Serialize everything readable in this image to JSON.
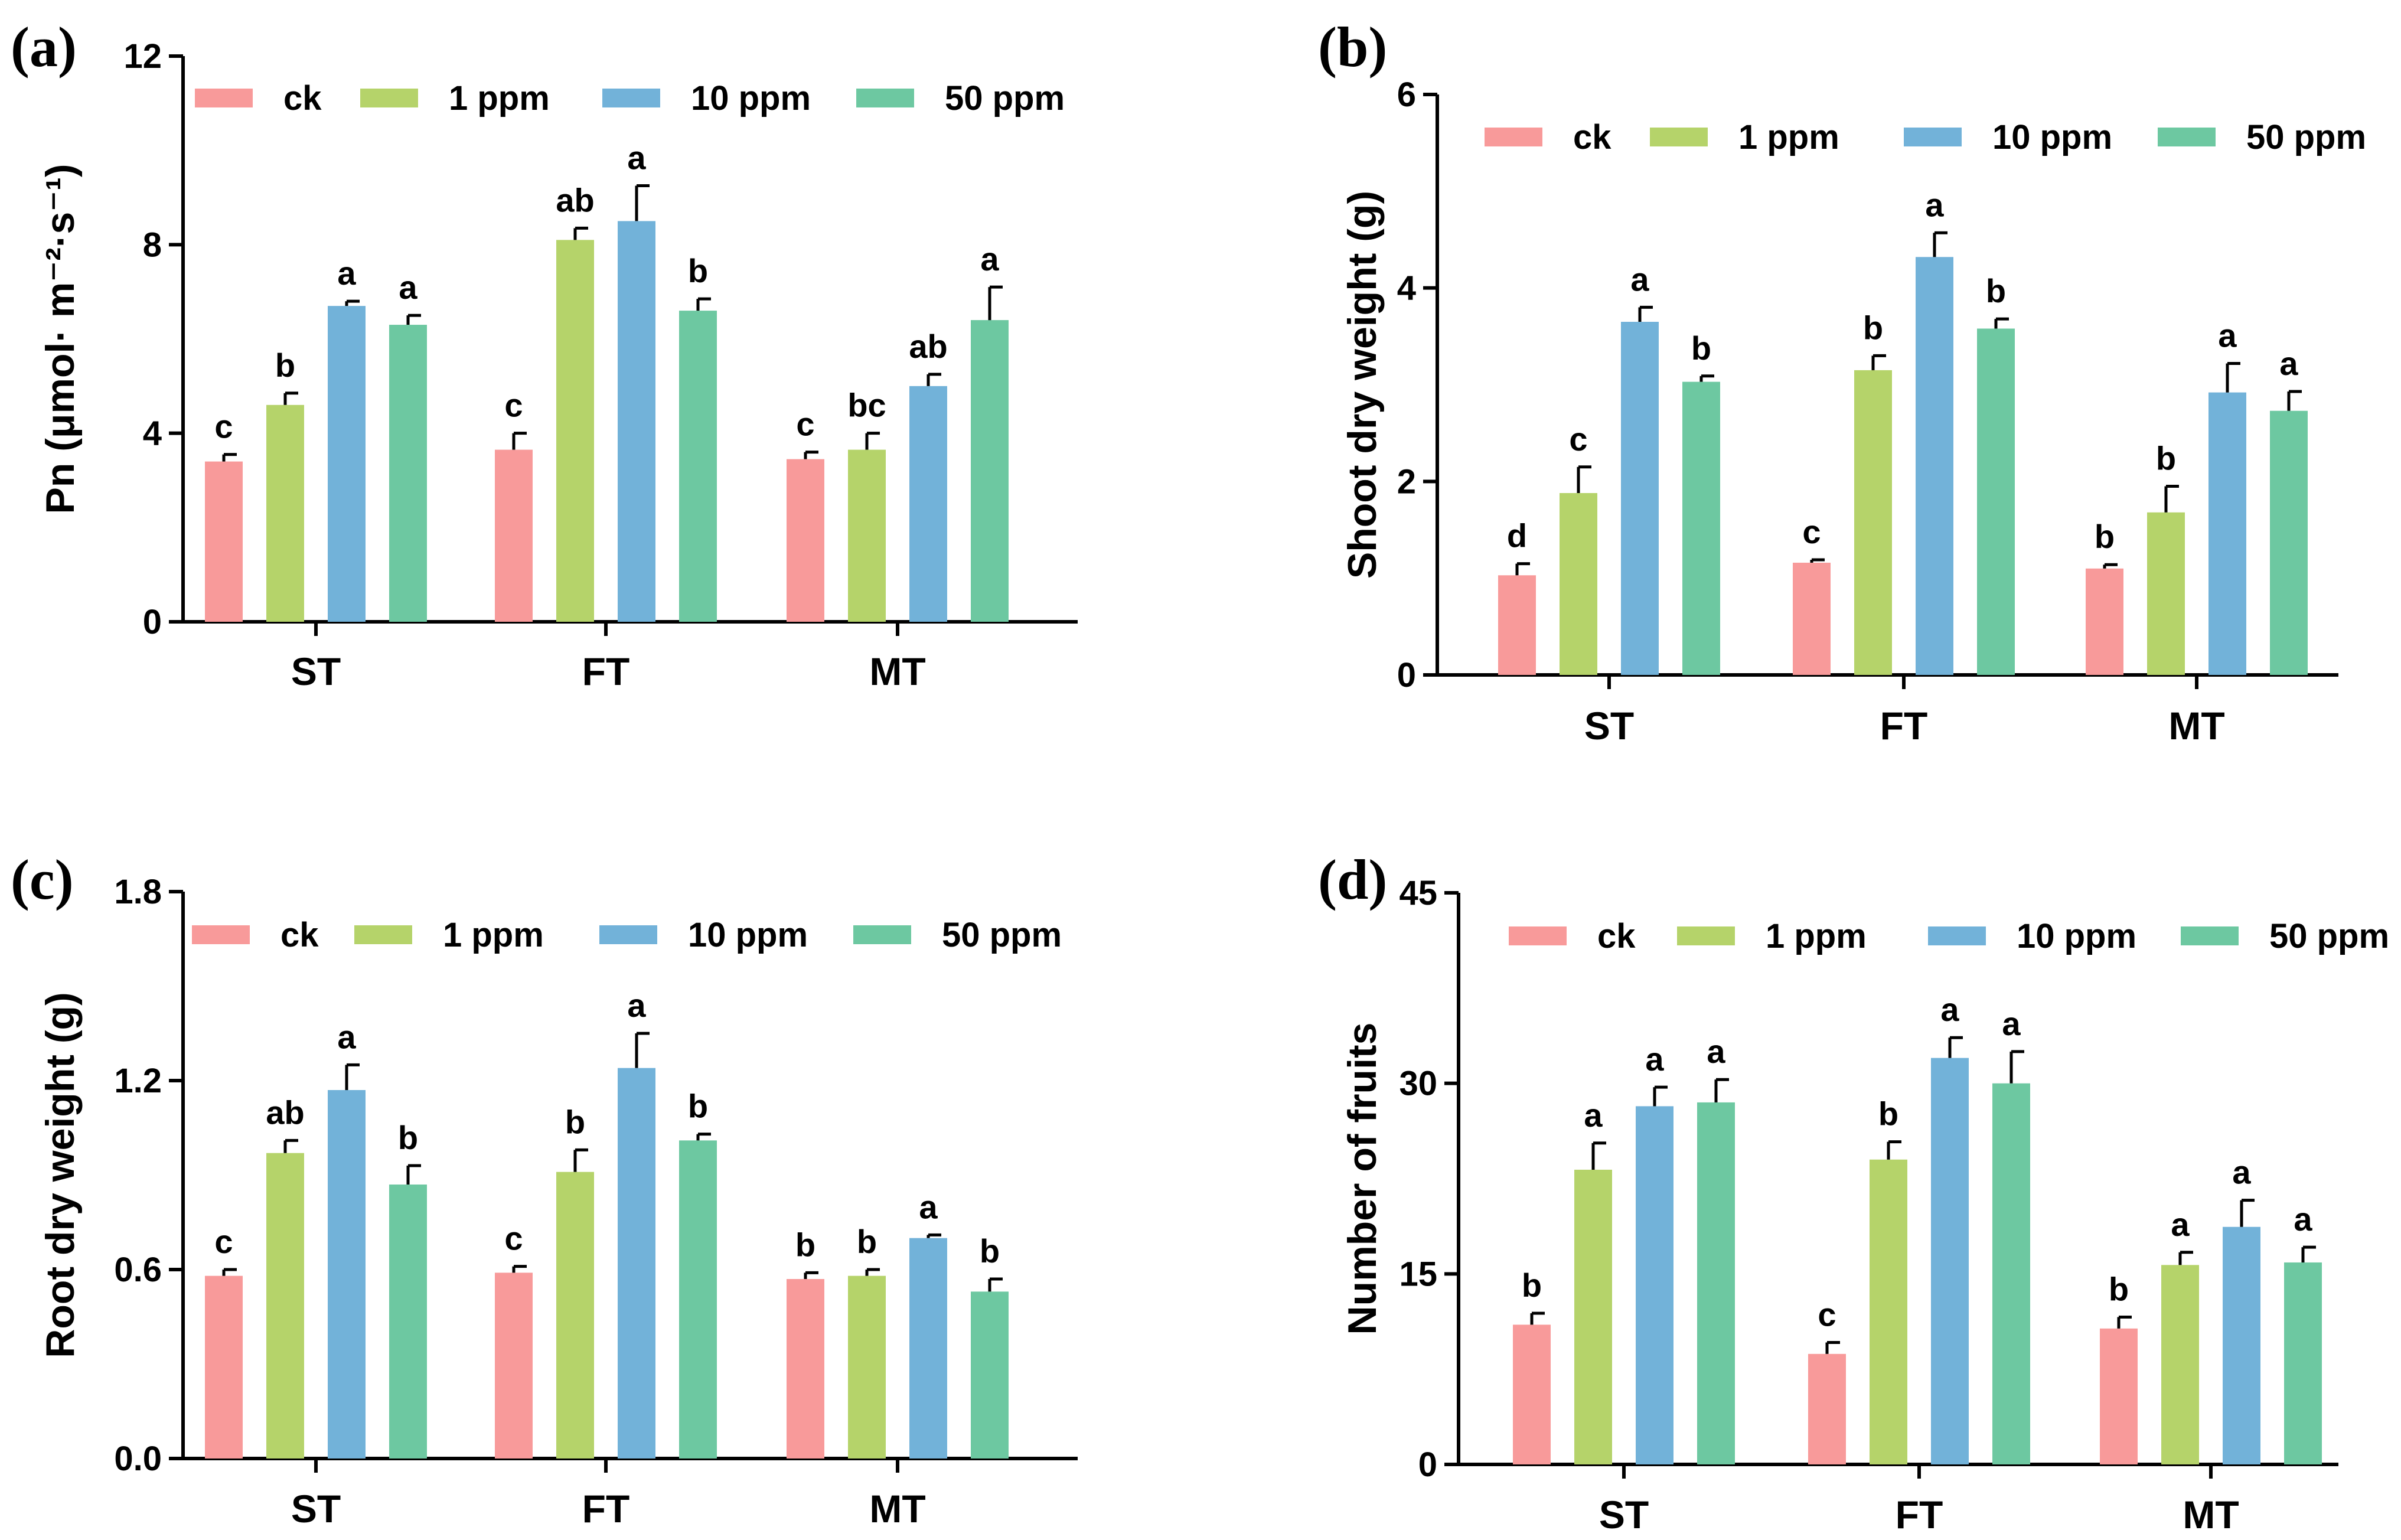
{
  "legend": [
    "ck",
    "1 ppm",
    "10 ppm",
    "50 ppm"
  ],
  "series_colors": [
    "#f89a9a",
    "#b5d36a",
    "#72b2d9",
    "#6dc8a1"
  ],
  "chart_data": [
    {
      "panel": "(a)",
      "type": "bar",
      "title": "",
      "xlabel": "",
      "ylabel": "Pn (μmol· m⁻²·s⁻¹)",
      "ylim": [
        0,
        12
      ],
      "yticks": [
        "0",
        "4",
        "8",
        "12"
      ],
      "categories": [
        "ST",
        "FT",
        "MT"
      ],
      "series": [
        {
          "name": "ck",
          "values": [
            3.4,
            3.65,
            3.45
          ],
          "errors": [
            0.15,
            0.35,
            0.15
          ],
          "labels": [
            "c",
            "c",
            "c"
          ]
        },
        {
          "name": "1 ppm",
          "values": [
            4.6,
            8.1,
            3.65
          ],
          "errors": [
            0.25,
            0.25,
            0.35
          ],
          "labels": [
            "b",
            "ab",
            "bc"
          ]
        },
        {
          "name": "10 ppm",
          "values": [
            6.7,
            8.5,
            5.0
          ],
          "errors": [
            0.1,
            0.75,
            0.25
          ],
          "labels": [
            "a",
            "a",
            "ab"
          ]
        },
        {
          "name": "50 ppm",
          "values": [
            6.3,
            6.6,
            6.4
          ],
          "errors": [
            0.2,
            0.25,
            0.7
          ],
          "labels": [
            "a",
            "b",
            "a"
          ]
        }
      ]
    },
    {
      "panel": "(b)",
      "type": "bar",
      "title": "",
      "xlabel": "",
      "ylabel": "Shoot dry weight (g)",
      "ylim": [
        0,
        6
      ],
      "yticks": [
        "0",
        "2",
        "4",
        "6"
      ],
      "categories": [
        "ST",
        "FT",
        "MT"
      ],
      "series": [
        {
          "name": "ck",
          "values": [
            1.03,
            1.16,
            1.1
          ],
          "errors": [
            0.12,
            0.03,
            0.04
          ],
          "labels": [
            "d",
            "c",
            "b"
          ]
        },
        {
          "name": "1 ppm",
          "values": [
            1.88,
            3.15,
            1.68
          ],
          "errors": [
            0.27,
            0.15,
            0.27
          ],
          "labels": [
            "c",
            "b",
            "b"
          ]
        },
        {
          "name": "10 ppm",
          "values": [
            3.65,
            4.32,
            2.92
          ],
          "errors": [
            0.15,
            0.25,
            0.3
          ],
          "labels": [
            "a",
            "a",
            "a"
          ]
        },
        {
          "name": "50 ppm",
          "values": [
            3.03,
            3.58,
            2.73
          ],
          "errors": [
            0.06,
            0.1,
            0.2
          ],
          "labels": [
            "b",
            "b",
            "a"
          ]
        }
      ]
    },
    {
      "panel": "(c)",
      "type": "bar",
      "title": "",
      "xlabel": "",
      "ylabel": "Root dry weight (g)",
      "ylim": [
        0,
        1.8
      ],
      "yticks": [
        "0.0",
        "0.6",
        "1.2",
        "1.8"
      ],
      "categories": [
        "ST",
        "FT",
        "MT"
      ],
      "series": [
        {
          "name": "ck",
          "values": [
            0.58,
            0.59,
            0.57
          ],
          "errors": [
            0.02,
            0.02,
            0.02
          ],
          "labels": [
            "c",
            "c",
            "b"
          ]
        },
        {
          "name": "1 ppm",
          "values": [
            0.97,
            0.91,
            0.58
          ],
          "errors": [
            0.04,
            0.07,
            0.02
          ],
          "labels": [
            "ab",
            "b",
            "b"
          ]
        },
        {
          "name": "10 ppm",
          "values": [
            1.17,
            1.24,
            0.7
          ],
          "errors": [
            0.08,
            0.11,
            0.01
          ],
          "labels": [
            "a",
            "a",
            "a"
          ]
        },
        {
          "name": "50 ppm",
          "values": [
            0.87,
            1.01,
            0.53
          ],
          "errors": [
            0.06,
            0.02,
            0.04
          ],
          "labels": [
            "b",
            "b",
            "b"
          ]
        }
      ]
    },
    {
      "panel": "(d)",
      "type": "bar",
      "title": "",
      "xlabel": "",
      "ylabel": "Number of fruits",
      "ylim": [
        0,
        45
      ],
      "yticks": [
        "0",
        "15",
        "30",
        "45"
      ],
      "categories": [
        "ST",
        "FT",
        "MT"
      ],
      "series": [
        {
          "name": "ck",
          "values": [
            11.0,
            8.7,
            10.7
          ],
          "errors": [
            0.9,
            0.9,
            0.9
          ],
          "labels": [
            "b",
            "c",
            "b"
          ]
        },
        {
          "name": "1 ppm",
          "values": [
            23.2,
            24.0,
            15.7
          ],
          "errors": [
            2.1,
            1.4,
            1.0
          ],
          "labels": [
            "a",
            "b",
            "a"
          ]
        },
        {
          "name": "10 ppm",
          "values": [
            28.2,
            32.0,
            18.7
          ],
          "errors": [
            1.5,
            1.6,
            2.1
          ],
          "labels": [
            "a",
            "a",
            "a"
          ]
        },
        {
          "name": "50 ppm",
          "values": [
            28.5,
            30.0,
            15.9
          ],
          "errors": [
            1.8,
            2.5,
            1.2
          ],
          "labels": [
            "a",
            "a",
            "a"
          ]
        }
      ]
    }
  ]
}
